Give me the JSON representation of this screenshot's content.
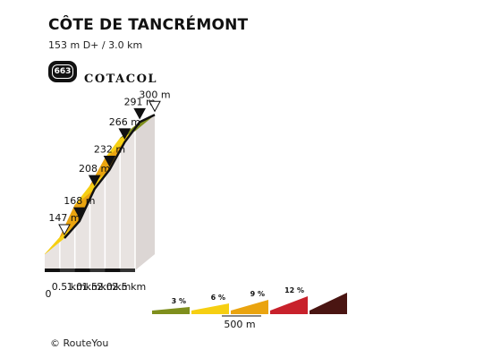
{
  "header": {
    "title": "CÔTE DE TANCRÉMONT",
    "subtitle": "153 m D+ / 3.0 km"
  },
  "badge": {
    "number": "663",
    "brand": "COTACOL"
  },
  "chart_data": {
    "type": "area",
    "points": [
      {
        "km": 0.0,
        "elevation_label": "147 m",
        "marker": "open"
      },
      {
        "km": 0.5,
        "elevation_label": "168 m",
        "marker": "filled"
      },
      {
        "km": 1.0,
        "elevation_label": "208 m",
        "marker": "filled"
      },
      {
        "km": 1.5,
        "elevation_label": "232 m",
        "marker": "filled"
      },
      {
        "km": 2.0,
        "elevation_label": "266 m",
        "marker": "filled"
      },
      {
        "km": 2.5,
        "elevation_label": "291 m",
        "marker": "filled"
      },
      {
        "km": 3.0,
        "elevation_label": "300 m",
        "marker": "open"
      }
    ],
    "elevations": [
      147,
      168,
      208,
      232,
      266,
      291,
      300
    ],
    "segment_colors": [
      "#f6cf12",
      "#eaa40f",
      "#f6cf12",
      "#eaa40f",
      "#f6cf12",
      "#7f8f1d"
    ],
    "x_ticks": [
      "0",
      "0.5 km",
      "1.0 km",
      "1.5 km",
      "2.0 km",
      "2.5 km"
    ]
  },
  "legend": {
    "items": [
      {
        "label": "3 %",
        "color": "#7f8f1d"
      },
      {
        "label": "6 %",
        "color": "#f6cf12"
      },
      {
        "label": "9 %",
        "color": "#eaa40f"
      },
      {
        "label": "12 %",
        "color": "#c8212b"
      },
      {
        "label": "",
        "color": "#4a1512"
      }
    ],
    "scale_label": "500 m"
  },
  "footer": {
    "credit": "© RouteYou"
  }
}
